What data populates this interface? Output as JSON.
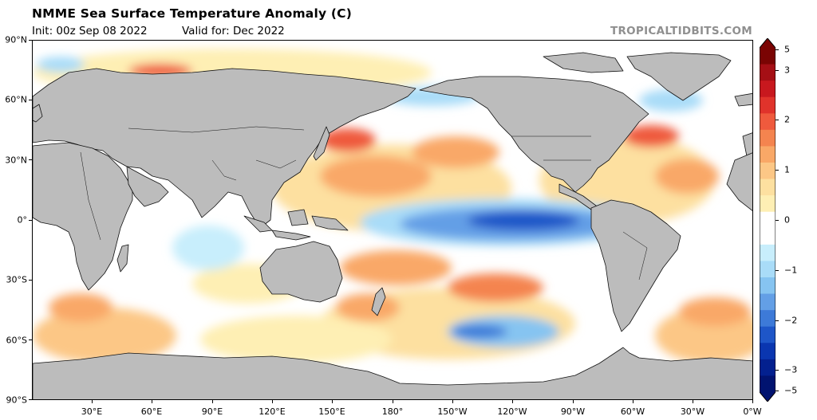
{
  "header": {
    "title": "NMME Sea Surface Temperature Anomaly (C)",
    "init": "Init: 00z Sep 08 2022",
    "valid": "Valid for: Dec 2022",
    "brand": "TROPICALTIDBITS.COM"
  },
  "map": {
    "projection": "equirectangular",
    "center_longitude": 180,
    "land_color": "#bcbcbc",
    "ocean_neutral_color": "#ffffff",
    "lat_labels": [
      "90°N",
      "60°N",
      "30°N",
      "0°",
      "30°S",
      "60°S",
      "90°S"
    ],
    "lon_labels": [
      "30°E",
      "60°E",
      "90°E",
      "120°E",
      "150°E",
      "180°",
      "150°W",
      "120°W",
      "90°W",
      "60°W",
      "30°W",
      "0°W"
    ]
  },
  "colorbar": {
    "unit": "C",
    "min": -5,
    "max": 5,
    "labels": [
      "5",
      "3",
      "2",
      "1",
      "0",
      "−1",
      "−2",
      "−3",
      "−5"
    ],
    "colors": [
      "#7a0403",
      "#a50f15",
      "#c8181e",
      "#e0332b",
      "#ef5a3d",
      "#f4844f",
      "#f9a867",
      "#fcc786",
      "#fde0a0",
      "#feefb4",
      "#ffffff",
      "#ffffff",
      "#c8eefc",
      "#a9dcf8",
      "#86c4f1",
      "#639fe6",
      "#3d7ad8",
      "#1e56c8",
      "#0a36b0",
      "#03208f",
      "#011370"
    ]
  }
}
